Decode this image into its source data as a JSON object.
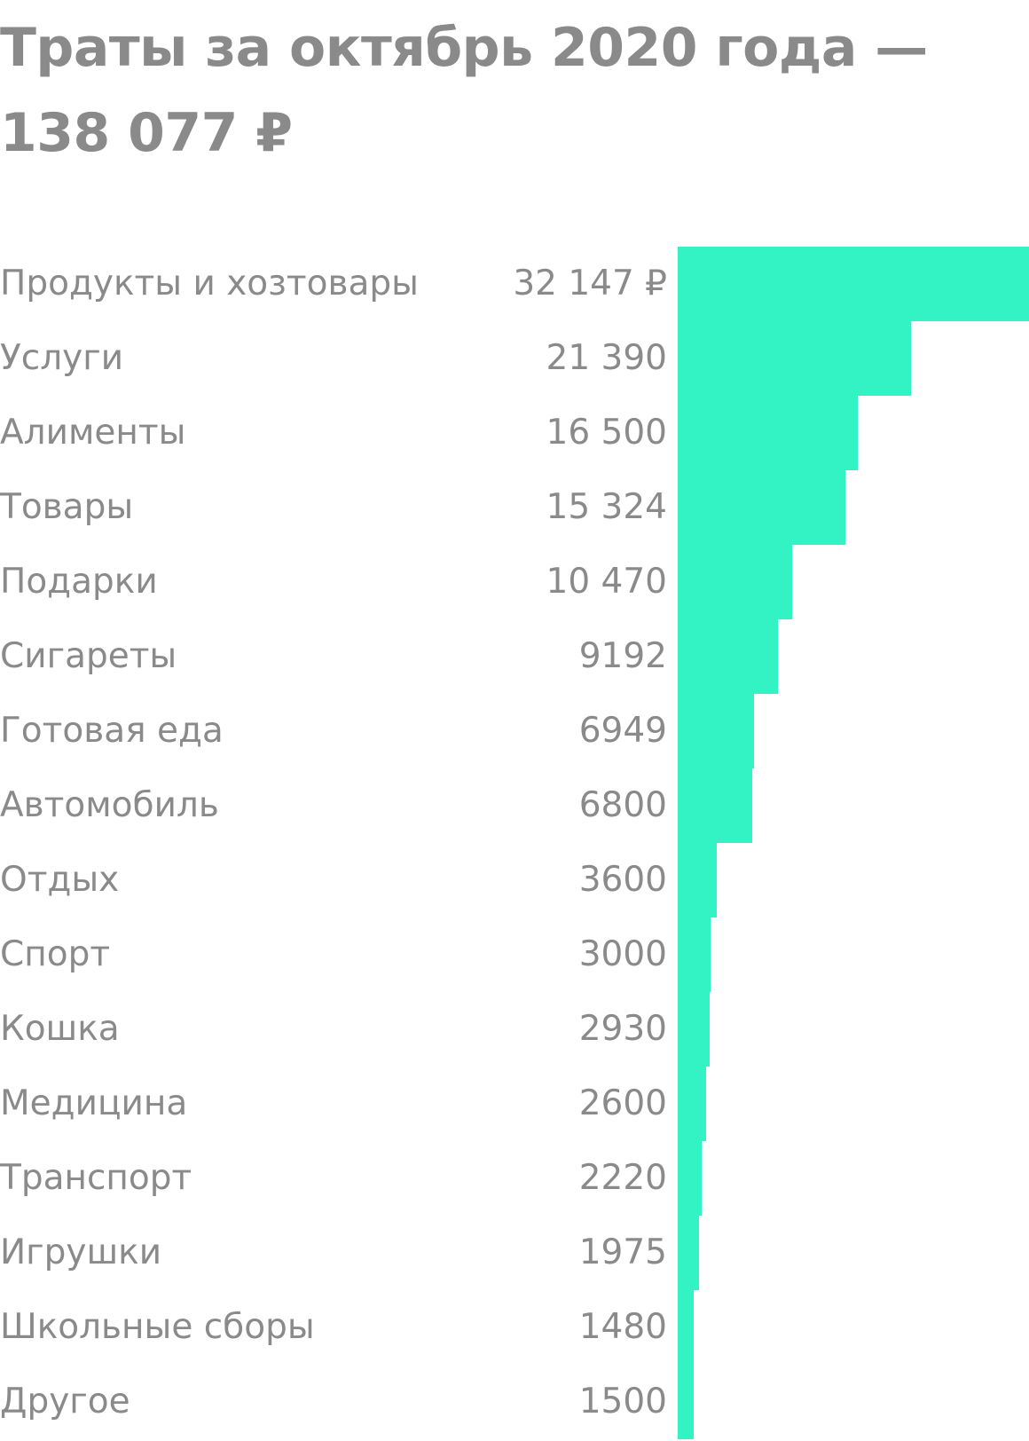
{
  "title": {
    "line1": "Траты за октябрь 2020 года —",
    "line2": "138 077 ₽"
  },
  "colors": {
    "bar": "#33f2c4",
    "text": "#8a8a8a"
  },
  "chart_data": {
    "type": "bar",
    "orientation": "horizontal",
    "title": "Траты за октябрь 2020 года — 138 077 ₽",
    "unit": "₽",
    "categories": [
      "Продукты и хозтовары",
      "Услуги",
      "Алименты",
      "Товары",
      "Подарки",
      "Сигареты",
      "Готовая еда",
      "Автомобиль",
      "Отдых",
      "Спорт",
      "Кошка",
      "Медицина",
      "Транспорт",
      "Игрушки",
      "Школьные сборы",
      "Другое"
    ],
    "values": [
      32147,
      21390,
      16500,
      15324,
      10470,
      9192,
      6949,
      6800,
      3600,
      3000,
      2930,
      2600,
      2220,
      1975,
      1480,
      1500
    ],
    "value_labels": [
      "32 147 ₽",
      "21 390",
      "16 500",
      "15 324",
      "10 470",
      "9192",
      "6949",
      "6800",
      "3600",
      "3000",
      "2930",
      "2600",
      "2220",
      "1975",
      "1480",
      "1500"
    ],
    "xlim": [
      0,
      32147
    ],
    "grid": false,
    "legend": "none"
  }
}
